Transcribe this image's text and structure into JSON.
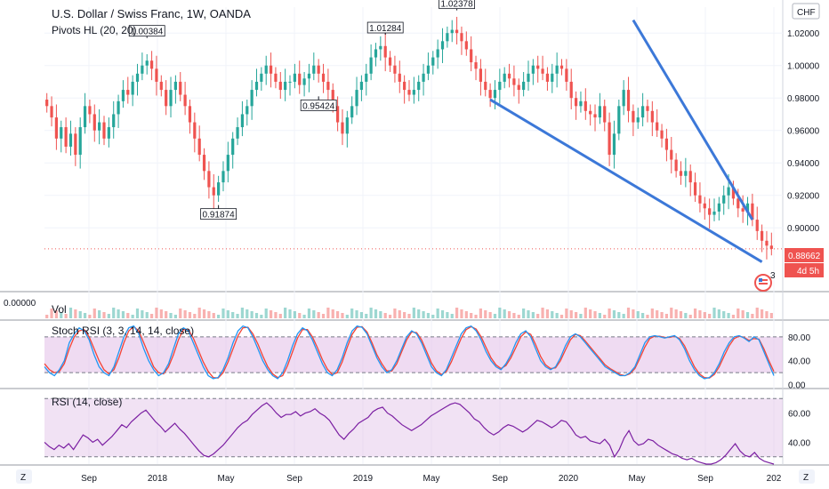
{
  "header": {
    "symbol_title": "U.S. Dollar / Swiss Franc, 1W, OANDA",
    "pivots_study": "Pivots HL (20, 20)",
    "currency_badge": "CHF",
    "price_badge": "0.88662",
    "countdown_badge": "4d 5h",
    "alert_count": "3"
  },
  "panes": {
    "volume": {
      "name": "Vol",
      "value_label": "0.00000"
    },
    "stoch": {
      "name": "Stoch RSI (3, 3, 14, 14, close)"
    },
    "rsi": {
      "name": "RSI (14, close)"
    }
  },
  "colors": {
    "up": "#26a69a",
    "down": "#ef5350",
    "trendline": "#3c78d8",
    "stoch_k": "#2196f3",
    "stoch_d": "#f44336",
    "rsi_line": "#7b1fa2",
    "band_fill": "#e1bee7"
  },
  "bottom_bar": {
    "left_icon": "Z",
    "right_icon": "Z"
  },
  "chart_data": {
    "type": "candlestick",
    "instrument": "USD/CHF",
    "timeframe": "1W",
    "price_axis": {
      "ticks": [
        "1.02000",
        "1.00000",
        "0.98000",
        "0.96000",
        "0.94000",
        "0.92000",
        "0.90000"
      ],
      "range": [
        0.876,
        1.036
      ]
    },
    "x_axis": {
      "ticks": [
        "Sep",
        "2018",
        "May",
        "Sep",
        "2019",
        "May",
        "Sep",
        "2020",
        "May",
        "Sep",
        "202"
      ]
    },
    "closes": [
      0.975,
      0.968,
      0.955,
      0.962,
      0.95,
      0.958,
      0.945,
      0.962,
      0.975,
      0.97,
      0.96,
      0.965,
      0.955,
      0.962,
      0.97,
      0.978,
      0.985,
      0.982,
      0.99,
      0.995,
      1.0,
      1.003,
      0.998,
      0.99,
      0.985,
      0.975,
      0.985,
      0.99,
      0.982,
      0.975,
      0.965,
      0.955,
      0.945,
      0.935,
      0.925,
      0.92,
      0.928,
      0.935,
      0.945,
      0.955,
      0.962,
      0.97,
      0.975,
      0.985,
      0.99,
      0.995,
      1.0,
      0.995,
      0.99,
      0.985,
      0.99,
      0.99,
      0.995,
      0.988,
      0.992,
      0.995,
      1.0,
      0.995,
      0.99,
      0.985,
      0.975,
      0.965,
      0.958,
      0.968,
      0.975,
      0.985,
      0.99,
      0.995,
      1.005,
      1.01,
      1.012,
      1.005,
      1.0,
      0.995,
      0.99,
      0.985,
      0.982,
      0.985,
      0.99,
      0.995,
      1.0,
      1.005,
      1.01,
      1.015,
      1.02,
      1.022,
      1.02,
      1.015,
      1.01,
      1.002,
      0.998,
      0.99,
      0.985,
      0.98,
      0.985,
      0.99,
      0.995,
      0.992,
      0.988,
      0.985,
      0.99,
      0.995,
      1.0,
      0.998,
      0.995,
      0.99,
      0.995,
      1.0,
      0.998,
      0.99,
      0.98,
      0.975,
      0.978,
      0.972,
      0.97,
      0.968,
      0.975,
      0.965,
      0.945,
      0.958,
      0.975,
      0.985,
      0.972,
      0.965,
      0.968,
      0.975,
      0.972,
      0.965,
      0.96,
      0.955,
      0.948,
      0.942,
      0.935,
      0.932,
      0.935,
      0.928,
      0.92,
      0.915,
      0.912,
      0.908,
      0.91,
      0.915,
      0.92,
      0.925,
      0.918,
      0.912,
      0.91,
      0.915,
      0.905,
      0.898,
      0.892,
      0.889,
      0.887
    ],
    "pivots": [
      {
        "type": "high",
        "label": "1.00384"
      },
      {
        "type": "low",
        "label": "0.91874"
      },
      {
        "type": "low",
        "label": "0.95424"
      },
      {
        "type": "high",
        "label": "1.01284"
      },
      {
        "type": "high",
        "label": "1.02378"
      }
    ],
    "stoch_rsi": {
      "ticks": [
        "80.00",
        "40.00",
        "0.00"
      ],
      "range": [
        -5,
        105
      ],
      "bands": [
        80,
        20
      ],
      "k": [
        30,
        20,
        15,
        25,
        40,
        70,
        85,
        95,
        90,
        75,
        50,
        30,
        20,
        15,
        30,
        55,
        80,
        95,
        98,
        85,
        60,
        40,
        25,
        15,
        20,
        35,
        60,
        85,
        95,
        90,
        70,
        50,
        30,
        15,
        10,
        12,
        25,
        45,
        70,
        90,
        98,
        95,
        80,
        60,
        40,
        25,
        15,
        10,
        20,
        40,
        65,
        85,
        95,
        90,
        75,
        55,
        35,
        20,
        15,
        25,
        45,
        70,
        90,
        98,
        96,
        85,
        65,
        45,
        30,
        20,
        25,
        40,
        60,
        80,
        90,
        85,
        70,
        50,
        30,
        20,
        15,
        25,
        45,
        65,
        85,
        95,
        98,
        90,
        75,
        55,
        40,
        30,
        25,
        35,
        50,
        70,
        85,
        90,
        80,
        60,
        40,
        30,
        25,
        30,
        45,
        65,
        80,
        85,
        80,
        70,
        60,
        50,
        40,
        30,
        25,
        20,
        15,
        15,
        20,
        30,
        50,
        70,
        80,
        82,
        80,
        78,
        80,
        82,
        75,
        60,
        40,
        25,
        15,
        10,
        12,
        20,
        35,
        55,
        70,
        80,
        82,
        78,
        72,
        80,
        75,
        55,
        35,
        15
      ],
      "d": [
        35,
        25,
        20,
        22,
        35,
        60,
        80,
        90,
        92,
        80,
        60,
        40,
        25,
        18,
        25,
        45,
        70,
        90,
        97,
        90,
        70,
        50,
        30,
        20,
        18,
        30,
        50,
        75,
        92,
        92,
        78,
        58,
        38,
        22,
        12,
        11,
        20,
        38,
        60,
        82,
        95,
        96,
        85,
        68,
        48,
        30,
        18,
        12,
        15,
        32,
        55,
        78,
        92,
        92,
        80,
        62,
        42,
        26,
        17,
        20,
        38,
        62,
        84,
        96,
        97,
        88,
        70,
        50,
        35,
        23,
        23,
        35,
        55,
        75,
        88,
        87,
        75,
        56,
        36,
        23,
        17,
        22,
        38,
        58,
        78,
        92,
        97,
        93,
        80,
        62,
        45,
        33,
        27,
        32,
        45,
        62,
        80,
        88,
        84,
        67,
        47,
        33,
        27,
        28,
        40,
        58,
        75,
        84,
        82,
        73,
        63,
        53,
        43,
        33,
        27,
        22,
        17,
        15,
        18,
        27,
        44,
        63,
        77,
        81,
        81,
        79,
        79,
        81,
        77,
        65,
        47,
        30,
        18,
        12,
        11,
        17,
        30,
        48,
        65,
        77,
        81,
        79,
        74,
        77,
        76,
        60,
        40,
        22
      ]
    },
    "rsi": {
      "ticks": [
        "60.00",
        "40.00"
      ],
      "range": [
        25,
        75
      ],
      "bands": [
        70,
        30
      ],
      "values": [
        40,
        37,
        35,
        38,
        36,
        39,
        35,
        40,
        45,
        43,
        40,
        42,
        38,
        41,
        44,
        48,
        52,
        50,
        54,
        57,
        60,
        62,
        58,
        54,
        51,
        47,
        50,
        53,
        49,
        46,
        42,
        38,
        34,
        31,
        30,
        32,
        35,
        38,
        42,
        46,
        50,
        53,
        55,
        59,
        62,
        65,
        67,
        64,
        60,
        57,
        59,
        59,
        61,
        58,
        60,
        61,
        63,
        60,
        58,
        55,
        50,
        45,
        42,
        46,
        49,
        53,
        55,
        57,
        61,
        63,
        64,
        60,
        58,
        55,
        52,
        50,
        48,
        50,
        52,
        55,
        58,
        60,
        62,
        64,
        66,
        67,
        66,
        63,
        60,
        56,
        54,
        50,
        47,
        45,
        47,
        50,
        52,
        51,
        49,
        47,
        49,
        52,
        55,
        54,
        52,
        50,
        52,
        55,
        54,
        50,
        45,
        43,
        44,
        41,
        40,
        39,
        42,
        38,
        30,
        35,
        43,
        48,
        41,
        38,
        39,
        42,
        41,
        38,
        36,
        34,
        32,
        31,
        29,
        28,
        29,
        27,
        26,
        25,
        25,
        26,
        28,
        31,
        35,
        39,
        34,
        31,
        30,
        33,
        29,
        27,
        26,
        25
      ]
    }
  }
}
